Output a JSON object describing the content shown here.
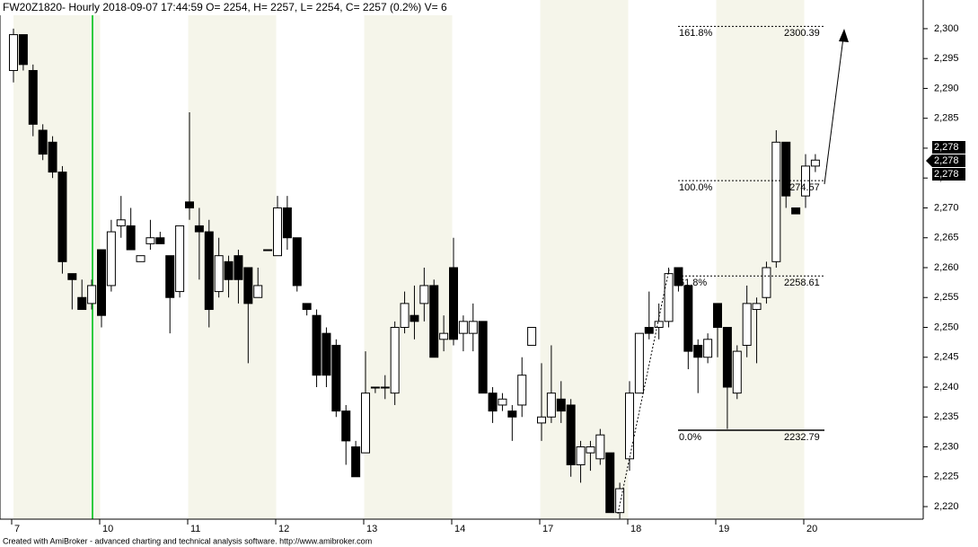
{
  "chart_data": {
    "type": "candlestick",
    "title": "FW20Z1820- Hourly 2018-09-07 17:44:59 O= 2254, H= 2257, L= 2254, C= 2257 (0.2%) V= 6",
    "footer": "Created with AmiBroker - advanced charting and technical analysis software. http://www.amibroker.com",
    "categories": [
      "7",
      null,
      null,
      null,
      null,
      null,
      null,
      null,
      null,
      "10",
      null,
      null,
      null,
      null,
      null,
      null,
      null,
      null,
      "11",
      null,
      null,
      null,
      null,
      null,
      null,
      null,
      null,
      "12",
      null,
      null,
      null,
      null,
      null,
      null,
      null,
      null,
      "13",
      null,
      null,
      null,
      null,
      null,
      null,
      null,
      null,
      "14",
      null,
      null,
      null,
      null,
      null,
      null,
      null,
      null,
      "17",
      null,
      null,
      null,
      null,
      null,
      null,
      null,
      null,
      "18",
      null,
      null,
      null,
      null,
      null,
      null,
      null,
      null,
      "19",
      null,
      null,
      null,
      null,
      null,
      null,
      null,
      null,
      "20",
      null
    ],
    "open": [
      2293,
      2299,
      2293,
      2283,
      2281,
      2276,
      2259,
      2255,
      2254,
      2263,
      2257,
      2267,
      2267,
      2261,
      2264,
      2265,
      2262,
      2256,
      2271,
      2267,
      2266,
      2256,
      2261,
      2262,
      2260,
      2255,
      2263,
      2262,
      2270,
      2265,
      2254,
      2252,
      2249,
      2247,
      2236,
      2230,
      2229,
      2240,
      2240,
      2239,
      2250,
      2252,
      2254,
      2257,
      2248,
      2260,
      2249,
      2249,
      2251,
      2239,
      2237,
      2236,
      2237,
      2247,
      2234,
      2235,
      2238,
      2237,
      2227,
      2229,
      2228,
      2229,
      2219,
      2228,
      2239,
      2250,
      2250,
      2251,
      2260,
      2257,
      2247,
      2245,
      2254,
      2250,
      2239,
      2247,
      2253,
      2255,
      2261,
      2281,
      2270,
      2272,
      2277
    ],
    "high": [
      2300,
      2299,
      2294,
      2284,
      2282,
      2277,
      2259,
      2258,
      2258,
      2263,
      2268,
      2272,
      2270,
      2262,
      2268,
      2266,
      2262,
      2267,
      2286,
      2270,
      2268,
      2265,
      2262,
      2263,
      2260,
      2260,
      2263,
      2272,
      2272,
      2265,
      2254,
      2253,
      2250,
      2248,
      2237,
      2231,
      2246,
      2240,
      2242,
      2251,
      2256,
      2257,
      2260,
      2258,
      2252,
      2265,
      2252,
      2254,
      2251,
      2240,
      2239,
      2237,
      2245,
      2250,
      2244,
      2247,
      2241,
      2238,
      2231,
      2231,
      2233,
      2229,
      2224,
      2241,
      2249,
      2256,
      2254,
      2260,
      2260,
      2257,
      2248,
      2249,
      2254,
      2250,
      2247,
      2257,
      2255,
      2261,
      2283,
      2281,
      2270,
      2279,
      2279
    ],
    "low": [
      2291,
      2293,
      2282,
      2278,
      2275,
      2259,
      2253,
      2253,
      2253,
      2250,
      2256,
      2265,
      2263,
      2261,
      2263,
      2264,
      2249,
      2255,
      2268,
      2258,
      2250,
      2255,
      2255,
      2254,
      2244,
      2255,
      2263,
      2262,
      2263,
      2256,
      2252,
      2240,
      2240,
      2235,
      2227,
      2225,
      2229,
      2239,
      2238,
      2237,
      2249,
      2248,
      2251,
      2245,
      2246,
      2247,
      2246,
      2246,
      2239,
      2234,
      2236,
      2231,
      2235,
      2247,
      2231,
      2234,
      2234,
      2225,
      2224,
      2226,
      2227,
      2219,
      2218,
      2226,
      2239,
      2248,
      2248,
      2250,
      2256,
      2243,
      2239,
      2244,
      2245,
      2233,
      2238,
      2245,
      2244,
      2254,
      2260,
      2270,
      2269,
      2270,
      2276
    ],
    "close": [
      2299,
      2294,
      2284,
      2279,
      2276,
      2261,
      2258,
      2253,
      2257,
      2252,
      2266,
      2268,
      2263,
      2262,
      2265,
      2264,
      2255,
      2267,
      2270,
      2266,
      2253,
      2262,
      2258,
      2258,
      2254,
      2257,
      2263,
      2270,
      2265,
      2257,
      2253,
      2242,
      2242,
      2236,
      2231,
      2225,
      2239,
      2240,
      2240,
      2250,
      2254,
      2251,
      2257,
      2245,
      2249,
      2248,
      2251,
      2251,
      2239,
      2236,
      2238,
      2235,
      2242,
      2250,
      2235,
      2239,
      2236,
      2227,
      2230,
      2230,
      2232,
      2219,
      2223,
      2239,
      2249,
      2249,
      2251,
      2259,
      2257,
      2246,
      2245,
      2248,
      2250,
      2240,
      2246,
      2254,
      2254,
      2260,
      2281,
      2272,
      2269,
      2277,
      2278
    ],
    "up_color": "#ffffff",
    "down_color": "#000000",
    "ylim": [
      2217.9,
      2304.8
    ],
    "yticks": [
      {
        "value": 2220,
        "label": "2,220"
      },
      {
        "value": 2225,
        "label": "2,225"
      },
      {
        "value": 2230,
        "label": "2,230"
      },
      {
        "value": 2235,
        "label": "2,235"
      },
      {
        "value": 2240,
        "label": "2,240"
      },
      {
        "value": 2245,
        "label": "2,245"
      },
      {
        "value": 2250,
        "label": "2,250"
      },
      {
        "value": 2255,
        "label": "2,255"
      },
      {
        "value": 2260,
        "label": "2,260"
      },
      {
        "value": 2265,
        "label": "2,265"
      },
      {
        "value": 2270,
        "label": "2,270"
      },
      {
        "value": 2275,
        "label": "2,275"
      },
      {
        "value": 2280,
        "label": "2,280"
      },
      {
        "value": 2285,
        "label": "2,285"
      },
      {
        "value": 2290,
        "label": "2,290"
      },
      {
        "value": 2295,
        "label": "2,295"
      },
      {
        "value": 2300,
        "label": "2,300"
      }
    ],
    "fib_levels": [
      {
        "label": "0.0%",
        "value": 2232.79
      },
      {
        "label": "61.8%",
        "value": 2258.61
      },
      {
        "label": "100.0%",
        "value": 2274.57
      },
      {
        "label": "161.8%",
        "value": 2300.39
      }
    ],
    "price_labels": [
      "2,278",
      "2,278",
      "2,278"
    ]
  }
}
